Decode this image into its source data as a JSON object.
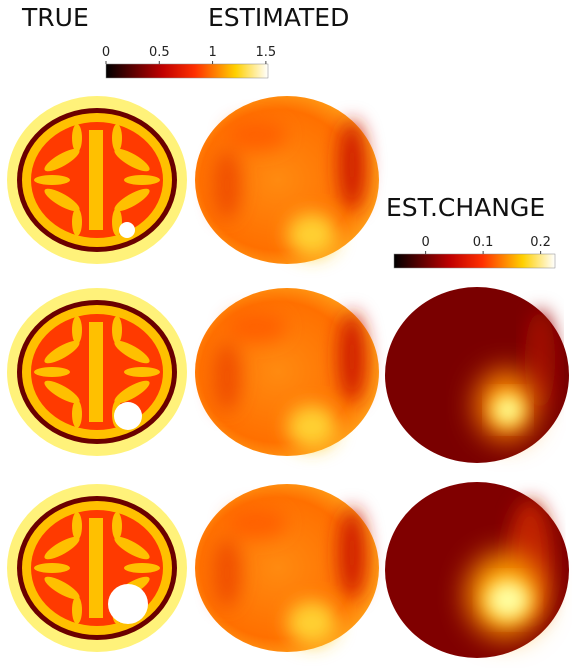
{
  "header": {
    "titles": [
      "TRUE",
      "ESTIMATED",
      "EST.CHANGE"
    ]
  },
  "colorbars": [
    {
      "lim": [
        0,
        1.52
      ],
      "ticks": [
        0,
        0.5,
        1,
        1.5
      ]
    },
    {
      "lim": [
        -0.055,
        0.225
      ],
      "ticks": [
        0,
        0.1,
        0.2
      ]
    }
  ]
}
